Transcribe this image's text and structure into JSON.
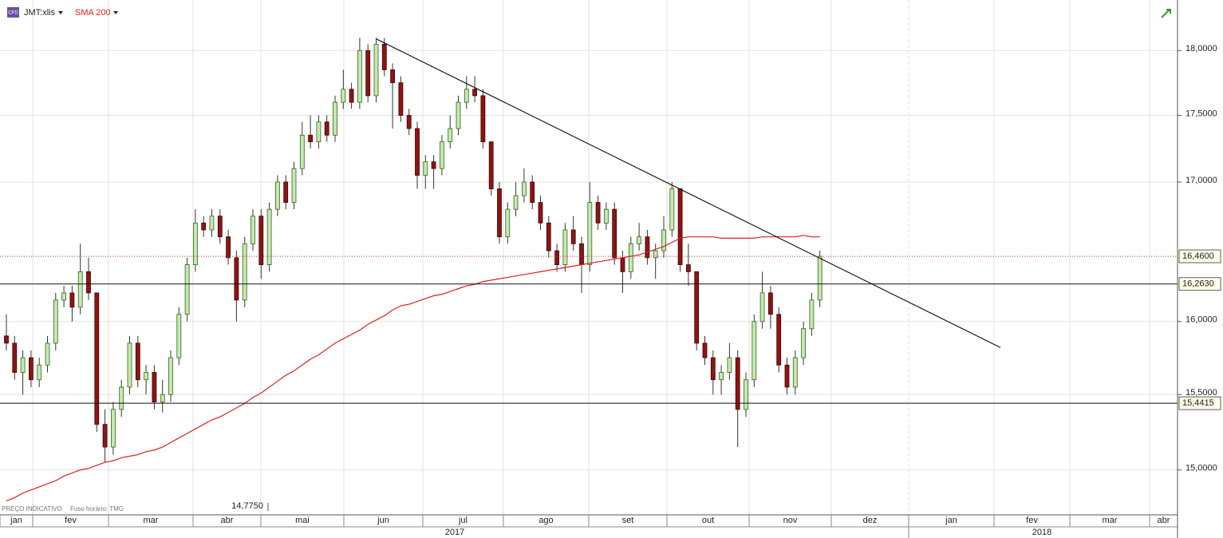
{
  "chart_data": {
    "type": "candlestick",
    "log_scale": true,
    "grid": true,
    "ylim": [
      14.71,
      18.4
    ],
    "yticks": [
      {
        "value": 15,
        "label": "15,0000"
      },
      {
        "value": 15.5,
        "label": "15,5000"
      },
      {
        "value": 16,
        "label": "16,0000"
      },
      {
        "value": 17,
        "label": "17,0000"
      },
      {
        "value": 17.5,
        "label": "17,5000"
      },
      {
        "value": 18,
        "label": "18,0000"
      }
    ],
    "months": [
      "jan",
      "fev",
      "mar",
      "abr",
      "mai",
      "jun",
      "jul",
      "ago",
      "set",
      "out",
      "nov",
      "dez",
      "jan",
      "fev",
      "mar",
      "abr"
    ],
    "years": [
      "2017",
      "2018"
    ],
    "series": [
      {
        "name": "JMT:xlis",
        "up_color": "#c9e6b3",
        "down_color": "#8b1515",
        "values": [
          [
            15.9,
            16.05,
            15.8,
            15.85
          ],
          [
            15.85,
            15.9,
            15.6,
            15.65
          ],
          [
            15.65,
            15.8,
            15.5,
            15.75
          ],
          [
            15.75,
            15.8,
            15.55,
            15.6
          ],
          [
            15.6,
            15.75,
            15.55,
            15.7
          ],
          [
            15.7,
            15.9,
            15.65,
            15.85
          ],
          [
            15.85,
            16.2,
            15.8,
            16.15
          ],
          [
            16.15,
            16.25,
            16.1,
            16.2
          ],
          [
            16.2,
            16.25,
            16.0,
            16.1
          ],
          [
            16.1,
            16.55,
            16.05,
            16.35
          ],
          [
            16.35,
            16.45,
            16.15,
            16.2
          ],
          [
            16.2,
            16.2,
            15.25,
            15.3
          ],
          [
            15.3,
            15.4,
            15.05,
            15.15
          ],
          [
            15.15,
            15.45,
            15.1,
            15.4
          ],
          [
            15.4,
            15.6,
            15.35,
            15.55
          ],
          [
            15.55,
            15.9,
            15.5,
            15.85
          ],
          [
            15.85,
            15.9,
            15.55,
            15.6
          ],
          [
            15.6,
            15.7,
            15.5,
            15.65
          ],
          [
            15.65,
            15.7,
            15.4,
            15.45
          ],
          [
            15.45,
            15.6,
            15.38,
            15.5
          ],
          [
            15.5,
            15.8,
            15.45,
            15.75
          ],
          [
            15.75,
            16.1,
            15.7,
            16.05
          ],
          [
            16.05,
            16.45,
            16.0,
            16.4
          ],
          [
            16.4,
            16.8,
            16.35,
            16.7
          ],
          [
            16.7,
            16.75,
            16.6,
            16.65
          ],
          [
            16.65,
            16.8,
            16.6,
            16.75
          ],
          [
            16.75,
            16.8,
            16.55,
            16.6
          ],
          [
            16.6,
            16.65,
            16.4,
            16.45
          ],
          [
            16.45,
            16.5,
            16.0,
            16.15
          ],
          [
            16.15,
            16.6,
            16.1,
            16.55
          ],
          [
            16.55,
            16.8,
            16.5,
            16.75
          ],
          [
            16.75,
            16.8,
            16.3,
            16.4
          ],
          [
            16.4,
            16.85,
            16.35,
            16.8
          ],
          [
            16.8,
            17.05,
            16.75,
            17.0
          ],
          [
            17.0,
            17.05,
            16.8,
            16.85
          ],
          [
            16.85,
            17.15,
            16.8,
            17.1
          ],
          [
            17.1,
            17.45,
            17.05,
            17.35
          ],
          [
            17.35,
            17.5,
            17.25,
            17.3
          ],
          [
            17.3,
            17.5,
            17.25,
            17.45
          ],
          [
            17.45,
            17.5,
            17.3,
            17.35
          ],
          [
            17.35,
            17.65,
            17.3,
            17.6
          ],
          [
            17.6,
            17.85,
            17.55,
            17.7
          ],
          [
            17.7,
            17.75,
            17.55,
            17.6
          ],
          [
            17.6,
            18.1,
            17.55,
            18.0
          ],
          [
            18.0,
            18.05,
            17.6,
            17.65
          ],
          [
            17.65,
            18.1,
            17.6,
            18.05
          ],
          [
            18.05,
            18.1,
            17.8,
            17.85
          ],
          [
            17.85,
            17.9,
            17.4,
            17.75
          ],
          [
            17.75,
            17.8,
            17.45,
            17.5
          ],
          [
            17.5,
            17.55,
            17.35,
            17.4
          ],
          [
            17.4,
            17.45,
            16.95,
            17.05
          ],
          [
            17.05,
            17.2,
            16.95,
            17.15
          ],
          [
            17.15,
            17.2,
            16.95,
            17.1
          ],
          [
            17.1,
            17.35,
            17.05,
            17.3
          ],
          [
            17.3,
            17.5,
            17.25,
            17.4
          ],
          [
            17.4,
            17.65,
            17.35,
            17.6
          ],
          [
            17.6,
            17.8,
            17.55,
            17.7
          ],
          [
            17.7,
            17.8,
            17.6,
            17.65
          ],
          [
            17.65,
            17.7,
            17.25,
            17.3
          ],
          [
            17.3,
            17.3,
            16.9,
            16.95
          ],
          [
            16.95,
            17.0,
            16.55,
            16.6
          ],
          [
            16.6,
            16.85,
            16.55,
            16.8
          ],
          [
            16.8,
            17.0,
            16.75,
            16.9
          ],
          [
            16.9,
            17.1,
            16.85,
            17.0
          ],
          [
            17.0,
            17.05,
            16.8,
            16.85
          ],
          [
            16.85,
            16.9,
            16.65,
            16.7
          ],
          [
            16.7,
            16.75,
            16.45,
            16.5
          ],
          [
            16.5,
            16.55,
            16.35,
            16.4
          ],
          [
            16.4,
            16.7,
            16.35,
            16.65
          ],
          [
            16.65,
            16.75,
            16.5,
            16.55
          ],
          [
            16.55,
            16.6,
            16.2,
            16.4
          ],
          [
            16.4,
            17.0,
            16.35,
            16.85
          ],
          [
            16.85,
            16.9,
            16.65,
            16.7
          ],
          [
            16.7,
            16.85,
            16.65,
            16.8
          ],
          [
            16.8,
            16.85,
            16.4,
            16.45
          ],
          [
            16.45,
            16.5,
            16.2,
            16.35
          ],
          [
            16.35,
            16.6,
            16.3,
            16.55
          ],
          [
            16.55,
            16.7,
            16.5,
            16.6
          ],
          [
            16.6,
            16.65,
            16.4,
            16.45
          ],
          [
            16.45,
            16.55,
            16.3,
            16.5
          ],
          [
            16.5,
            16.75,
            16.45,
            16.65
          ],
          [
            16.65,
            17.0,
            16.6,
            16.95
          ],
          [
            16.95,
            16.95,
            16.35,
            16.4
          ],
          [
            16.4,
            16.55,
            16.25,
            16.35
          ],
          [
            16.35,
            16.35,
            15.8,
            15.85
          ],
          [
            15.85,
            15.9,
            15.7,
            15.75
          ],
          [
            15.75,
            15.8,
            15.5,
            15.6
          ],
          [
            15.6,
            15.7,
            15.5,
            15.65
          ],
          [
            15.65,
            15.85,
            15.6,
            15.75
          ],
          [
            15.75,
            15.8,
            15.15,
            15.4
          ],
          [
            15.4,
            15.65,
            15.35,
            15.6
          ],
          [
            15.6,
            16.05,
            15.55,
            16.0
          ],
          [
            16.0,
            16.35,
            15.95,
            16.2
          ],
          [
            16.2,
            16.25,
            15.95,
            16.05
          ],
          [
            16.05,
            16.1,
            15.65,
            15.7
          ],
          [
            15.7,
            15.75,
            15.5,
            15.55
          ],
          [
            15.55,
            15.8,
            15.5,
            15.75
          ],
          [
            15.75,
            16.0,
            15.7,
            15.95
          ],
          [
            15.95,
            16.2,
            15.9,
            16.15
          ],
          [
            16.15,
            16.5,
            16.1,
            16.46
          ]
        ]
      },
      {
        "name": "SMA 200",
        "color": "#e0201e",
        "values": [
          14.8,
          14.82,
          14.85,
          14.87,
          14.89,
          14.91,
          14.93,
          14.96,
          14.98,
          15.0,
          15.01,
          15.03,
          15.05,
          15.06,
          15.08,
          15.09,
          15.1,
          15.12,
          15.13,
          15.15,
          15.18,
          15.21,
          15.24,
          15.27,
          15.3,
          15.33,
          15.35,
          15.38,
          15.41,
          15.44,
          15.48,
          15.51,
          15.55,
          15.59,
          15.63,
          15.66,
          15.7,
          15.74,
          15.77,
          15.81,
          15.85,
          15.88,
          15.91,
          15.94,
          15.98,
          16.01,
          16.04,
          16.08,
          16.11,
          16.12,
          16.14,
          16.16,
          16.18,
          16.19,
          16.21,
          16.23,
          16.25,
          16.26,
          16.28,
          16.29,
          16.3,
          16.31,
          16.32,
          16.33,
          16.34,
          16.35,
          16.36,
          16.37,
          16.38,
          16.39,
          16.4,
          16.41,
          16.42,
          16.43,
          16.44,
          16.45,
          16.46,
          16.47,
          16.49,
          16.51,
          16.53,
          16.56,
          16.59,
          16.6,
          16.6,
          16.6,
          16.6,
          16.59,
          16.59,
          16.59,
          16.59,
          16.59,
          16.6,
          16.6,
          16.6,
          16.6,
          16.6,
          16.61,
          16.6,
          16.6
        ]
      }
    ],
    "trendline": [
      18.09,
      15.82
    ],
    "levels": [
      {
        "value": 16.263,
        "label": "16,2630"
      },
      {
        "value": 15.4415,
        "label": "15,4415"
      }
    ],
    "last_price": {
      "value": 16.46,
      "label": "16,4600"
    },
    "low_marker": "14,7750",
    "footer": [
      "PREÇO INDICATIVO",
      "Fuso horário: TMG"
    ],
    "badge": "CFD"
  }
}
